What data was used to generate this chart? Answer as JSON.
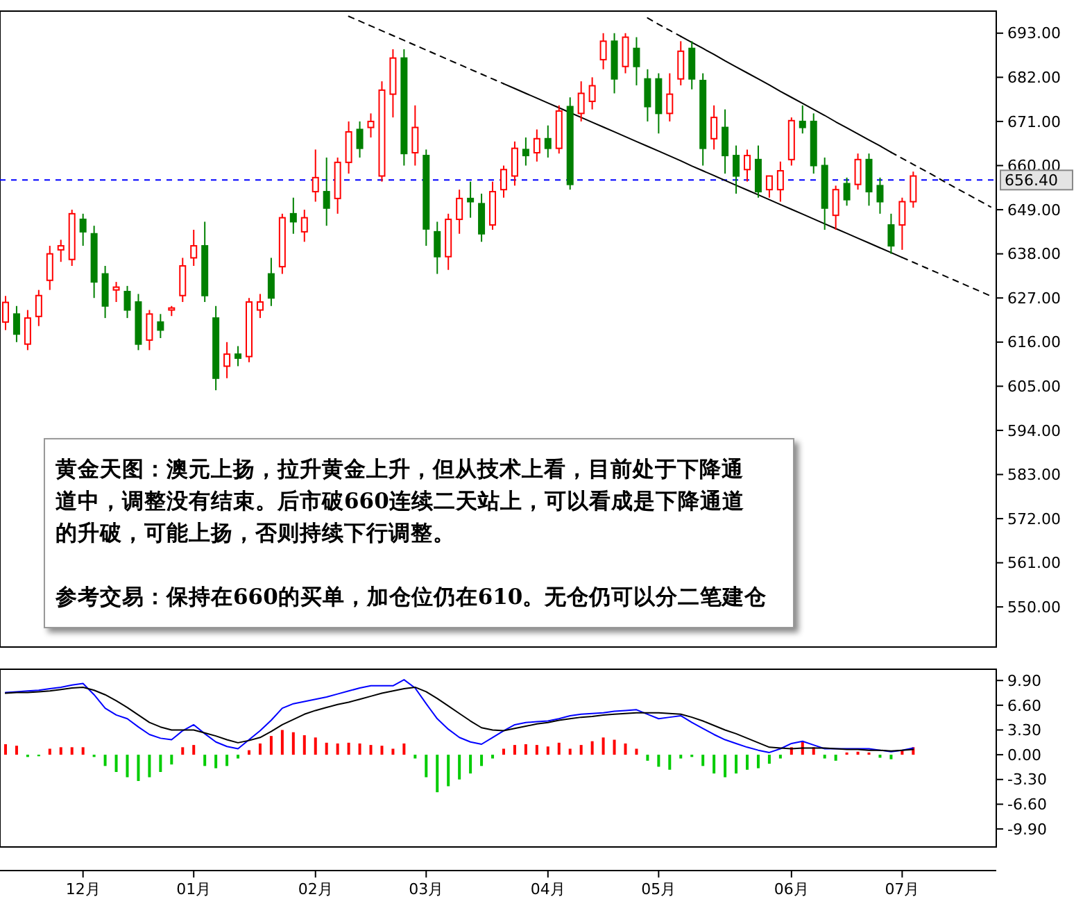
{
  "chart_data": [
    {
      "type": "candlestick",
      "categories": [
        null,
        null,
        null,
        null,
        null,
        null,
        null,
        null,
        null,
        null,
        null,
        null,
        null,
        null,
        null,
        null,
        null,
        null,
        null,
        null,
        null,
        null,
        null,
        null,
        null,
        null,
        null,
        null,
        null,
        null,
        null,
        null,
        null,
        null,
        null,
        null,
        null,
        null,
        null,
        null,
        null,
        null,
        null,
        null,
        null,
        null,
        null,
        null,
        null,
        null,
        null,
        null,
        null,
        null,
        null,
        null,
        null,
        null,
        null,
        null,
        null,
        null,
        null,
        null,
        null,
        null,
        null,
        null,
        null,
        null,
        null,
        null,
        null,
        null,
        null,
        null,
        null,
        null,
        null,
        null,
        null,
        null,
        null,
        null,
        null,
        null,
        null,
        null,
        null,
        null
      ],
      "ohlc": [
        [
          621,
          627.5,
          619,
          625.9
        ],
        [
          623,
          625,
          616,
          618
        ],
        [
          615.5,
          624,
          614,
          622
        ],
        [
          622.4,
          629,
          620,
          627.6
        ],
        [
          631.4,
          640,
          629,
          638
        ],
        [
          639,
          641.5,
          636,
          640
        ],
        [
          636.6,
          649,
          635,
          648
        ],
        [
          646.6,
          648,
          640,
          643.5
        ],
        [
          643,
          645,
          627,
          631
        ],
        [
          633,
          635,
          622,
          625
        ],
        [
          629,
          631,
          626,
          629.7
        ],
        [
          628.6,
          630,
          622,
          624
        ],
        [
          626,
          628,
          614,
          615.5
        ],
        [
          616.5,
          624,
          614,
          623
        ],
        [
          621,
          623,
          617,
          619
        ],
        [
          624,
          625,
          622.5,
          624.5
        ],
        [
          627.6,
          637,
          626,
          635
        ],
        [
          637,
          644,
          635,
          640
        ],
        [
          640,
          646,
          626,
          627.6
        ],
        [
          622,
          625,
          604,
          607
        ],
        [
          610,
          616,
          607,
          613
        ],
        [
          613,
          615,
          610,
          612
        ],
        [
          612.4,
          627,
          611,
          626
        ],
        [
          624,
          628,
          622,
          626
        ],
        [
          633,
          637,
          625,
          627
        ],
        [
          634.8,
          648,
          633,
          647
        ],
        [
          648,
          652,
          643,
          646
        ],
        [
          643.5,
          649,
          641,
          647
        ],
        [
          653.5,
          664,
          651,
          657
        ],
        [
          653.5,
          662,
          645,
          649.4
        ],
        [
          651.8,
          662,
          648,
          660.8
        ],
        [
          660.8,
          671,
          658,
          668.4
        ],
        [
          669,
          671,
          662,
          664.3
        ],
        [
          669.5,
          673,
          667,
          671
        ],
        [
          657.4,
          681,
          656,
          678.8
        ],
        [
          677.8,
          689,
          672,
          686.8
        ],
        [
          686.8,
          689,
          660,
          663
        ],
        [
          663.2,
          675,
          660,
          669.5
        ],
        [
          662.5,
          664,
          640,
          644.2
        ],
        [
          643.5,
          646,
          633,
          637.3
        ],
        [
          637.3,
          648,
          634,
          646.6
        ],
        [
          646.6,
          654,
          643,
          651.8
        ],
        [
          651.8,
          656,
          647,
          651
        ],
        [
          650.5,
          653,
          641,
          643
        ],
        [
          645.2,
          656,
          644,
          653.5
        ],
        [
          654,
          660,
          652,
          659
        ],
        [
          657.4,
          666,
          655,
          664.3
        ],
        [
          664,
          667,
          660,
          662.5
        ],
        [
          663.2,
          669,
          661,
          666.7
        ],
        [
          666.7,
          670,
          662,
          664.3
        ],
        [
          664.3,
          675,
          663,
          673.6
        ],
        [
          674.7,
          677,
          654,
          655.3
        ],
        [
          673,
          681,
          671,
          678
        ],
        [
          676,
          682,
          674,
          679.9
        ],
        [
          686.4,
          693,
          684,
          691
        ],
        [
          691,
          693,
          678,
          681.6
        ],
        [
          684.7,
          693,
          683,
          692
        ],
        [
          689.2,
          692,
          680,
          684.7
        ],
        [
          681.6,
          684,
          671,
          674.7
        ],
        [
          681.6,
          683,
          668,
          673
        ],
        [
          673,
          683,
          671,
          677.8
        ],
        [
          681.6,
          691,
          680,
          688.5
        ],
        [
          689.2,
          691,
          679,
          681.6
        ],
        [
          681.2,
          683,
          660,
          664.3
        ],
        [
          666.7,
          675,
          664,
          672
        ],
        [
          669.5,
          674,
          658,
          662.5
        ],
        [
          662.5,
          665,
          653,
          657.4
        ],
        [
          659,
          664,
          656,
          662.5
        ],
        [
          661.5,
          665,
          652,
          653.5
        ],
        [
          654,
          657.5,
          652,
          657.4
        ],
        [
          654,
          661,
          651,
          658.7
        ],
        [
          661.5,
          672,
          660,
          671.2
        ],
        [
          671,
          675,
          668,
          669.5
        ],
        [
          671,
          673,
          658,
          660
        ],
        [
          660,
          662,
          644,
          649.4
        ],
        [
          647.6,
          655,
          644,
          654
        ],
        [
          655.5,
          657,
          650,
          651.5
        ],
        [
          655.3,
          663,
          654,
          661.5
        ],
        [
          661.5,
          663,
          650,
          653.5
        ],
        [
          655,
          657,
          648,
          651
        ],
        [
          645.2,
          648,
          638,
          640
        ],
        [
          645.2,
          652,
          639,
          651
        ],
        [
          651,
          658.5,
          649.5,
          657.4
        ],
        null,
        null,
        null,
        null,
        null,
        null,
        null
      ],
      "colors": [
        "#ff0000",
        "#008000",
        "#ff0000",
        "#ff0000",
        "#ff0000",
        "#ff0000",
        "#ff0000",
        "#008000",
        "#008000",
        "#008000",
        "#ff0000",
        "#008000",
        "#008000",
        "#ff0000",
        "#008000",
        "#ff0000",
        "#ff0000",
        "#ff0000",
        "#008000",
        "#008000",
        "#ff0000",
        "#008000",
        "#ff0000",
        "#ff0000",
        "#008000",
        "#ff0000",
        "#008000",
        "#ff0000",
        "#ff0000",
        "#008000",
        "#ff0000",
        "#ff0000",
        "#008000",
        "#ff0000",
        "#ff0000",
        "#ff0000",
        "#008000",
        "#ff0000",
        "#008000",
        "#008000",
        "#ff0000",
        "#ff0000",
        "#008000",
        "#008000",
        "#ff0000",
        "#ff0000",
        "#ff0000",
        "#008000",
        "#ff0000",
        "#008000",
        "#ff0000",
        "#008000",
        "#ff0000",
        "#ff0000",
        "#ff0000",
        "#008000",
        "#ff0000",
        "#008000",
        "#008000",
        "#008000",
        "#ff0000",
        "#ff0000",
        "#008000",
        "#008000",
        "#ff0000",
        "#008000",
        "#008000",
        "#ff0000",
        "#008000",
        "#ff0000",
        "#ff0000",
        "#ff0000",
        "#008000",
        "#008000",
        "#008000",
        "#ff0000",
        "#008000",
        "#ff0000",
        "#008000",
        "#008000",
        "#008000",
        "#ff0000",
        "#ff0000",
        null,
        null,
        null,
        null,
        null,
        null,
        null
      ],
      "series": [
        {
          "type": "line",
          "color": "#000000",
          "line_style": "dashed",
          "values": [
            null,
            null,
            null,
            null,
            null,
            null,
            null,
            null,
            null,
            null,
            null,
            null,
            null,
            null,
            null,
            null,
            null,
            null,
            null,
            null,
            null,
            null,
            null,
            null,
            null,
            null,
            null,
            null,
            null,
            null,
            null,
            697.2,
            696.0,
            694.8,
            693.6,
            692.4,
            691.2,
            690.0,
            688.8,
            687.6,
            686.4,
            685.2,
            684.0,
            682.8,
            681.6,
            680.4,
            null,
            null,
            null,
            null,
            null,
            null,
            null,
            null,
            null,
            null,
            null,
            null,
            null,
            null,
            null,
            null,
            null,
            null,
            null,
            null,
            null,
            null,
            null,
            null,
            null,
            null,
            null,
            null,
            null,
            null,
            null,
            null,
            null,
            null,
            null,
            null,
            null,
            null,
            null,
            null,
            null,
            null,
            null,
            null
          ]
        },
        {
          "type": "line",
          "color": "#000000",
          "line_style": "solid",
          "values": [
            null,
            null,
            null,
            null,
            null,
            null,
            null,
            null,
            null,
            null,
            null,
            null,
            null,
            null,
            null,
            null,
            null,
            null,
            null,
            null,
            null,
            null,
            null,
            null,
            null,
            null,
            null,
            null,
            null,
            null,
            null,
            null,
            null,
            null,
            null,
            null,
            null,
            null,
            null,
            null,
            null,
            null,
            null,
            null,
            null,
            680.4,
            679.2,
            678.0,
            676.8,
            675.6,
            674.4,
            673.2,
            672.0,
            670.8,
            669.6,
            668.4,
            667.2,
            666.0,
            664.8,
            663.6,
            662.4,
            661.2,
            659.9,
            658.7,
            657.5,
            656.3,
            655.1,
            653.9,
            652.7,
            651.5,
            650.3,
            649.1,
            647.9,
            646.7,
            645.5,
            644.3,
            643.1,
            641.9,
            640.7,
            639.5,
            638.3,
            637.1,
            null,
            null,
            null,
            null,
            null,
            null,
            null,
            null
          ]
        },
        {
          "type": "line",
          "color": "#000000",
          "line_style": "dashed",
          "values": [
            null,
            null,
            null,
            null,
            null,
            null,
            null,
            null,
            null,
            null,
            null,
            null,
            null,
            null,
            null,
            null,
            null,
            null,
            null,
            null,
            null,
            null,
            null,
            null,
            null,
            null,
            null,
            null,
            null,
            null,
            null,
            null,
            null,
            null,
            null,
            null,
            null,
            null,
            null,
            null,
            null,
            null,
            null,
            null,
            null,
            null,
            null,
            null,
            null,
            null,
            null,
            null,
            null,
            null,
            null,
            null,
            null,
            null,
            null,
            null,
            null,
            null,
            null,
            null,
            null,
            null,
            null,
            null,
            null,
            null,
            null,
            null,
            null,
            null,
            null,
            null,
            null,
            null,
            null,
            null,
            null,
            637.1,
            635.9,
            634.7,
            633.5,
            632.3,
            631.1,
            629.9,
            628.7,
            627.5
          ]
        },
        {
          "type": "line",
          "color": "#000000",
          "line_style": "dashed",
          "values": [
            null,
            null,
            null,
            null,
            null,
            null,
            null,
            null,
            null,
            null,
            null,
            null,
            null,
            null,
            null,
            null,
            null,
            null,
            null,
            null,
            null,
            null,
            null,
            null,
            null,
            null,
            null,
            null,
            null,
            null,
            null,
            null,
            null,
            null,
            null,
            null,
            null,
            null,
            null,
            null,
            null,
            null,
            null,
            null,
            null,
            null,
            null,
            null,
            null,
            null,
            null,
            null,
            null,
            null,
            null,
            null,
            null,
            null,
            696.8,
            695.2,
            693.7,
            692.2,
            null,
            null,
            null,
            null,
            null,
            null,
            null,
            null,
            null,
            null,
            null,
            null,
            null,
            null,
            null,
            null,
            null,
            null,
            null,
            null,
            null,
            null,
            null,
            null,
            null,
            null,
            null,
            null
          ]
        },
        {
          "type": "line",
          "color": "#000000",
          "line_style": "solid",
          "values": [
            null,
            null,
            null,
            null,
            null,
            null,
            null,
            null,
            null,
            null,
            null,
            null,
            null,
            null,
            null,
            null,
            null,
            null,
            null,
            null,
            null,
            null,
            null,
            null,
            null,
            null,
            null,
            null,
            null,
            null,
            null,
            null,
            null,
            null,
            null,
            null,
            null,
            null,
            null,
            null,
            null,
            null,
            null,
            null,
            null,
            null,
            null,
            null,
            null,
            null,
            null,
            null,
            null,
            null,
            null,
            null,
            null,
            null,
            null,
            null,
            null,
            692.2,
            690.7,
            689.2,
            687.7,
            686.1,
            684.6,
            683.1,
            681.6,
            680.1,
            678.5,
            677.0,
            675.5,
            674.0,
            672.5,
            670.9,
            669.4,
            667.9,
            666.4,
            664.9,
            663.3,
            null,
            null,
            null,
            null,
            null,
            null,
            null,
            null,
            null
          ]
        },
        {
          "type": "line",
          "color": "#000000",
          "line_style": "dashed",
          "values": [
            null,
            null,
            null,
            null,
            null,
            null,
            null,
            null,
            null,
            null,
            null,
            null,
            null,
            null,
            null,
            null,
            null,
            null,
            null,
            null,
            null,
            null,
            null,
            null,
            null,
            null,
            null,
            null,
            null,
            null,
            null,
            null,
            null,
            null,
            null,
            null,
            null,
            null,
            null,
            null,
            null,
            null,
            null,
            null,
            null,
            null,
            null,
            null,
            null,
            null,
            null,
            null,
            null,
            null,
            null,
            null,
            null,
            null,
            null,
            null,
            null,
            null,
            null,
            null,
            null,
            null,
            null,
            null,
            null,
            null,
            null,
            null,
            null,
            null,
            null,
            null,
            null,
            null,
            null,
            null,
            663.3,
            661.8,
            660.3,
            658.8,
            657.3,
            655.7,
            654.2,
            652.7,
            651.2,
            649.7
          ]
        }
      ],
      "ref_lines": [
        {
          "axis": "y",
          "value": 656.4,
          "label": "656.40",
          "color": "#0000ff",
          "line_style": "dashed"
        }
      ],
      "annotations": [
        "黄金天图：澳元上扬，拉升黄金上升，但从技术上看，目前处于下降通",
        "道中，调整没有结束。后市破660连续二天站上，可以看成是下降通道",
        "的升破，可能上扬，否则持续下行调整。",
        "参考交易：保持在660的买单，加仓位仍在610。无仓仍可以分二笔建仓"
      ],
      "ylim": [
        540,
        698.5
      ],
      "yticks": [
        {
          "value": 550,
          "label": "550.00"
        },
        {
          "value": 561,
          "label": "561.00"
        },
        {
          "value": 572,
          "label": "572.00"
        },
        {
          "value": 583,
          "label": "583.00"
        },
        {
          "value": 594,
          "label": "594.00"
        },
        {
          "value": 605,
          "label": "605.00"
        },
        {
          "value": 616,
          "label": "616.00"
        },
        {
          "value": 627,
          "label": "627.00"
        },
        {
          "value": 638,
          "label": "638.00"
        },
        {
          "value": 649,
          "label": "649.00"
        },
        {
          "value": 660,
          "label": "660.00"
        },
        {
          "value": 671,
          "label": "671.00"
        },
        {
          "value": 682,
          "label": "682.00"
        },
        {
          "value": 693,
          "label": "693.00"
        }
      ],
      "tick_labels": "y"
    },
    {
      "type": "bar",
      "categories": [
        null,
        null,
        null,
        null,
        null,
        null,
        null,
        "12月",
        null,
        null,
        null,
        null,
        null,
        null,
        null,
        null,
        null,
        "01月",
        null,
        null,
        null,
        null,
        null,
        null,
        null,
        null,
        null,
        null,
        "02月",
        null,
        null,
        null,
        null,
        null,
        null,
        null,
        null,
        null,
        "03月",
        null,
        null,
        null,
        null,
        null,
        null,
        null,
        null,
        null,
        null,
        "04月",
        null,
        null,
        null,
        null,
        null,
        null,
        null,
        null,
        null,
        "05月",
        null,
        null,
        null,
        null,
        null,
        null,
        null,
        null,
        null,
        null,
        null,
        "06月",
        null,
        null,
        null,
        null,
        null,
        null,
        null,
        null,
        null,
        "07月",
        null,
        null,
        null,
        null,
        null,
        null,
        null,
        null
      ],
      "series": [
        {
          "type": "bar",
          "color": "#ff0000",
          "values": [
            1.4,
            1.2,
            null,
            null,
            0.8,
            1.0,
            1.0,
            1.0,
            null,
            null,
            null,
            null,
            null,
            null,
            null,
            null,
            1.0,
            1.3,
            null,
            null,
            null,
            null,
            0.6,
            1.5,
            2.5,
            3.3,
            3.0,
            2.6,
            2.3,
            1.6,
            1.5,
            1.6,
            1.5,
            1.3,
            1.2,
            0.8,
            1.5,
            null,
            null,
            null,
            null,
            null,
            null,
            null,
            null,
            0.8,
            1.3,
            1.4,
            1.3,
            1.1,
            1.6,
            0.8,
            1.3,
            1.8,
            2.3,
            2.0,
            1.5,
            0.8,
            null,
            null,
            null,
            null,
            null,
            null,
            null,
            null,
            null,
            null,
            null,
            null,
            null,
            1.0,
            1.8,
            1.0,
            null,
            null,
            0.3,
            0.4,
            0.3,
            null,
            null,
            0.5,
            1.0,
            null,
            null,
            null,
            null,
            null,
            null,
            null
          ]
        },
        {
          "type": "bar",
          "color": "#00cc00",
          "values": [
            null,
            null,
            -0.3,
            -0.2,
            null,
            null,
            null,
            null,
            -0.3,
            -1.5,
            -2.3,
            -3.0,
            -3.5,
            -3.0,
            -2.3,
            -1.3,
            null,
            null,
            -1.5,
            -1.8,
            -1.5,
            -0.5,
            null,
            null,
            null,
            null,
            null,
            null,
            null,
            null,
            null,
            null,
            null,
            null,
            null,
            null,
            null,
            -0.5,
            -3.0,
            -5.0,
            -4.2,
            -3.3,
            -2.5,
            -1.5,
            -0.5,
            null,
            null,
            null,
            null,
            null,
            null,
            null,
            null,
            null,
            null,
            null,
            null,
            null,
            -0.8,
            -1.6,
            -2.0,
            -0.5,
            -0.3,
            -1.5,
            -2.5,
            -3.0,
            -2.5,
            -2.0,
            -1.8,
            -1.2,
            -0.5,
            null,
            null,
            null,
            -0.5,
            -0.8,
            null,
            null,
            null,
            -0.4,
            -0.6,
            null,
            null,
            null,
            null,
            null,
            null,
            null,
            null,
            null
          ]
        },
        {
          "type": "line",
          "color": "#0000ff",
          "values": [
            8.3,
            8.4,
            8.5,
            8.6,
            8.8,
            9.0,
            9.3,
            9.5,
            8.0,
            6.2,
            5.3,
            4.8,
            3.7,
            2.7,
            2.2,
            2.0,
            3.2,
            4.0,
            2.8,
            1.7,
            1.1,
            0.8,
            2.0,
            3.2,
            4.6,
            6.2,
            6.8,
            7.1,
            7.4,
            7.7,
            8.1,
            8.5,
            8.9,
            9.2,
            9.2,
            9.2,
            10.0,
            8.9,
            6.8,
            4.8,
            3.4,
            2.3,
            1.7,
            1.4,
            2.3,
            3.2,
            4.0,
            4.3,
            4.4,
            4.5,
            4.8,
            5.2,
            5.4,
            5.5,
            5.6,
            5.8,
            5.9,
            6.0,
            5.4,
            4.8,
            5.0,
            5.2,
            4.3,
            3.5,
            2.7,
            2.0,
            1.5,
            1.0,
            0.6,
            0.3,
            0.8,
            1.5,
            1.8,
            1.3,
            0.8,
            0.8,
            0.8,
            0.8,
            0.8,
            0.6,
            0.4,
            0.6,
            0.9,
            null,
            null,
            null,
            null,
            null,
            null,
            null
          ]
        },
        {
          "type": "line",
          "color": "#000000",
          "values": [
            8.2,
            8.3,
            8.3,
            8.4,
            8.5,
            8.7,
            8.9,
            9.0,
            8.6,
            8.0,
            7.2,
            6.3,
            5.3,
            4.3,
            3.7,
            3.3,
            3.3,
            3.3,
            2.9,
            2.5,
            2.0,
            1.6,
            1.9,
            2.3,
            3.1,
            4.0,
            4.7,
            5.4,
            5.9,
            6.3,
            6.7,
            7.0,
            7.4,
            7.8,
            8.2,
            8.5,
            8.8,
            9.0,
            8.4,
            7.5,
            6.5,
            5.5,
            4.5,
            3.6,
            3.3,
            3.2,
            3.5,
            3.8,
            4.1,
            4.3,
            4.6,
            4.8,
            5.0,
            5.1,
            5.3,
            5.4,
            5.5,
            5.6,
            5.6,
            5.6,
            5.5,
            5.4,
            5.0,
            4.5,
            3.9,
            3.3,
            2.8,
            2.2,
            1.6,
            1.0,
            0.9,
            0.8,
            0.9,
            0.9,
            0.9,
            0.8,
            0.7,
            0.7,
            0.6,
            0.6,
            0.5,
            0.6,
            0.7,
            null,
            null,
            null,
            null,
            null,
            null,
            null
          ]
        }
      ],
      "ylim": [
        -12.3,
        11.4
      ],
      "yticks": [
        {
          "value": -9.9,
          "label": "-9.90"
        },
        {
          "value": -6.6,
          "label": "-6.60"
        },
        {
          "value": -3.3,
          "label": "-3.30"
        },
        {
          "value": 0,
          "label": "0.00"
        },
        {
          "value": 3.3,
          "label": "3.30"
        },
        {
          "value": 6.6,
          "label": "6.60"
        },
        {
          "value": 9.9,
          "label": "9.90"
        }
      ]
    }
  ]
}
